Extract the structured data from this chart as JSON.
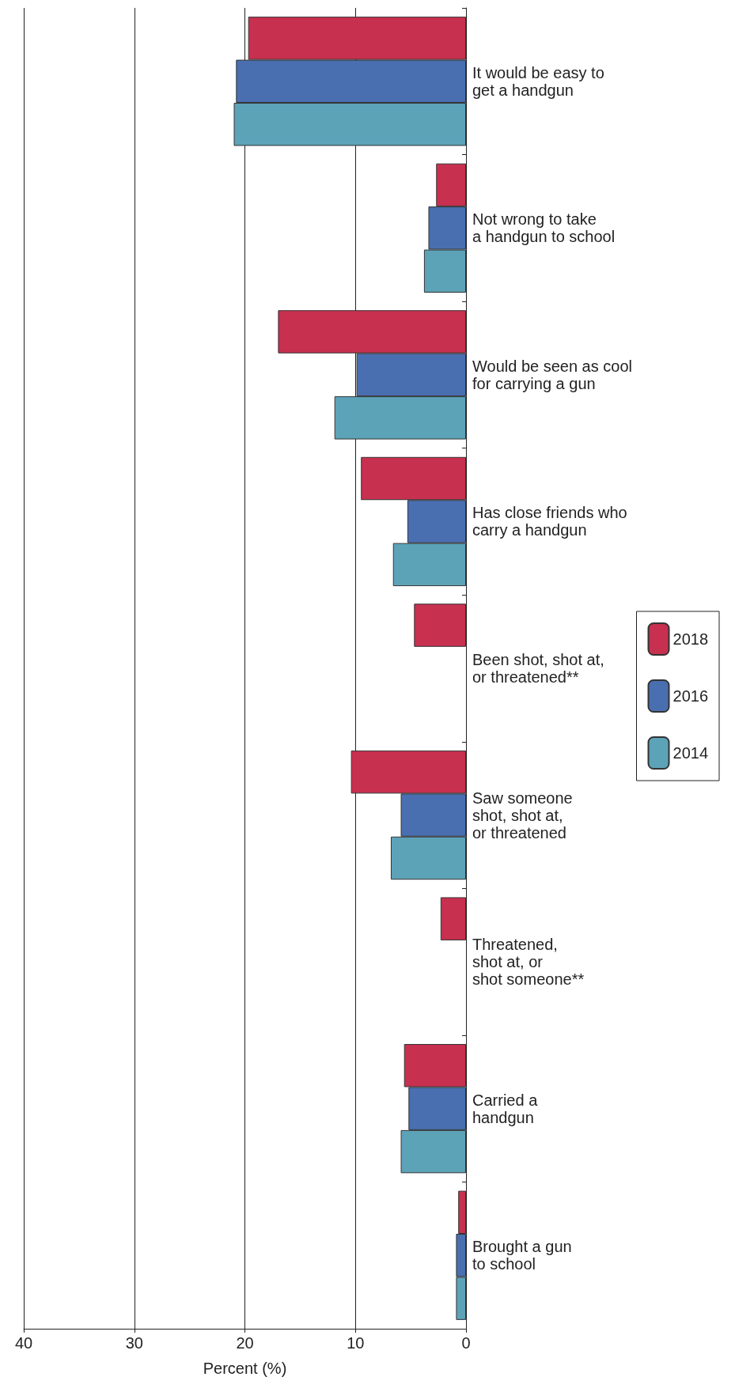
{
  "chart_data": {
    "type": "bar",
    "orientation": "horizontal",
    "xlabel": "Percent (%)",
    "categories": [
      "It would be easy to\nget a handgun",
      "Not wrong to take\na handgun to school",
      "Would be seen as cool\nfor carrying a gun",
      "Has close friends who\ncarry a handgun",
      "Been shot, shot at,\nor threatened**",
      "Saw someone\nshot, shot at,\nor threatened",
      "Threatened,\nshot at, or\nshot someone**",
      "Carried a\nhandgun",
      "Brought a gun\nto school"
    ],
    "series": [
      {
        "name": "2018",
        "color": "#c8304f",
        "values": [
          19.7,
          2.7,
          17.0,
          9.5,
          4.7,
          10.4,
          2.3,
          5.6,
          0.7
        ]
      },
      {
        "name": "2016",
        "color": "#4a6fb0",
        "values": [
          20.8,
          3.4,
          9.9,
          5.3,
          null,
          5.9,
          null,
          5.2,
          0.9
        ]
      },
      {
        "name": "2014",
        "color": "#5ca3b8",
        "values": [
          21.0,
          3.8,
          11.9,
          6.6,
          null,
          6.8,
          null,
          5.9,
          0.9
        ]
      }
    ],
    "xlim": [
      40,
      0
    ],
    "xticks": [
      40,
      30,
      20,
      10,
      0
    ],
    "grid": "x",
    "legend": "right"
  }
}
